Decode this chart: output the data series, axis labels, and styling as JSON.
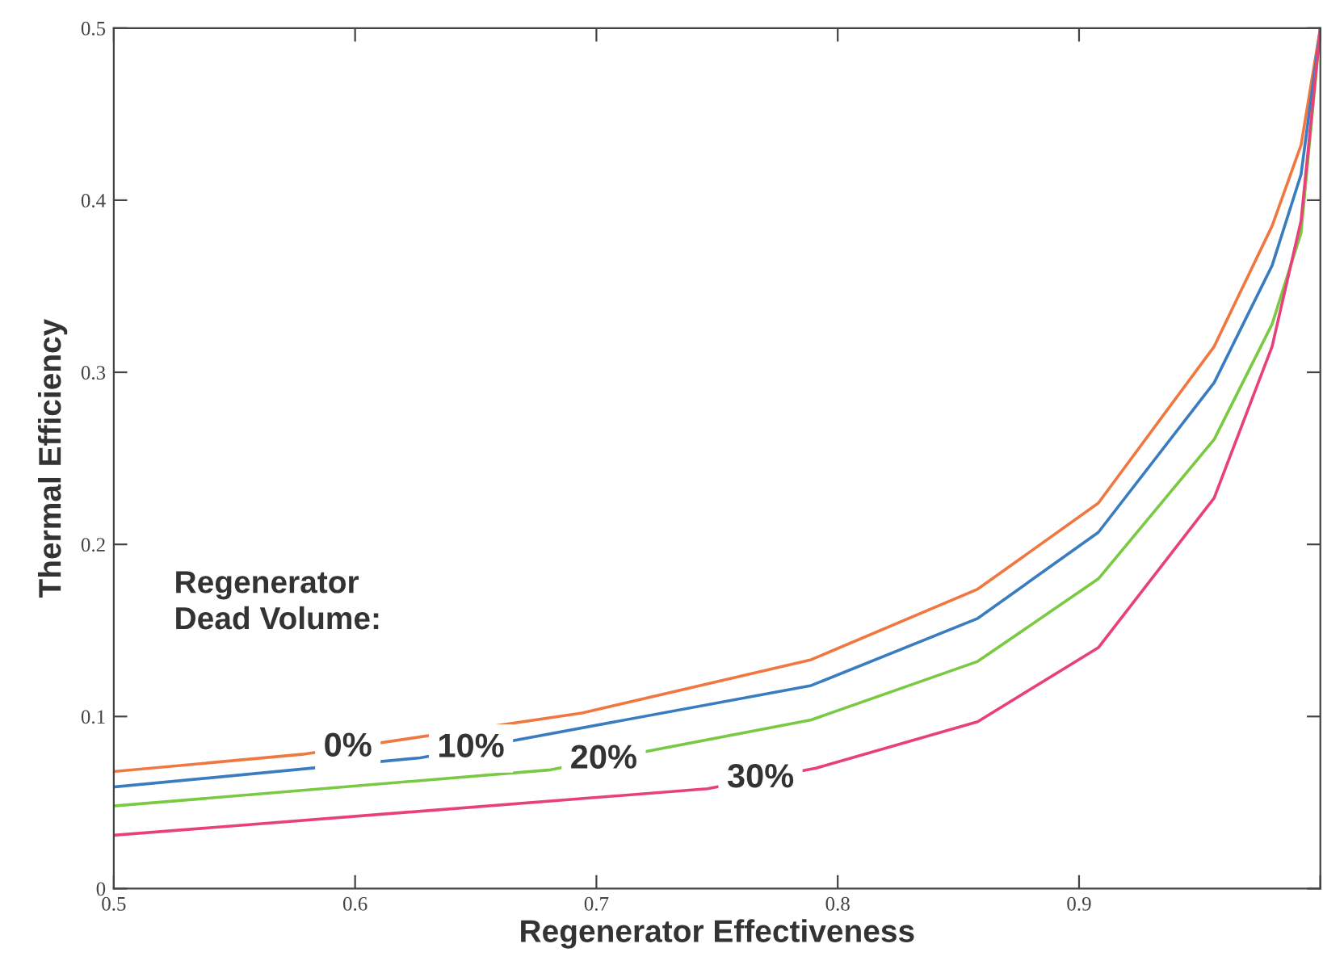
{
  "chart_data": {
    "type": "line",
    "xlabel": "Regenerator Effectiveness",
    "ylabel": "Thermal Efficiency",
    "legend_title": "Regenerator\nDead Volume:",
    "xlim": [
      0.5,
      1.0
    ],
    "ylim": [
      0,
      0.5
    ],
    "xticks": [
      0.5,
      0.6,
      0.7,
      0.8,
      0.9,
      {
        "value": 1.0,
        "label": null
      }
    ],
    "yticks": [
      0,
      0.1,
      0.2,
      0.3,
      0.4,
      0.5
    ],
    "grid": false,
    "legend": false,
    "marker": "none",
    "line_style": "solid",
    "series": [
      {
        "name": "0%",
        "color": "#f07840",
        "x": [
          0.5,
          0.578,
          0.694,
          0.789,
          0.858,
          0.908,
          0.956,
          0.98,
          0.992,
          1.0
        ],
        "values": [
          0.068,
          0.078,
          0.102,
          0.133,
          0.174,
          0.224,
          0.315,
          0.385,
          0.432,
          0.5
        ]
      },
      {
        "name": "10%",
        "color": "#3a7cc0",
        "x": [
          0.5,
          0.627,
          0.789,
          0.858,
          0.908,
          0.956,
          0.98,
          0.992,
          1.0
        ],
        "values": [
          0.059,
          0.076,
          0.118,
          0.157,
          0.207,
          0.294,
          0.362,
          0.415,
          0.5
        ]
      },
      {
        "name": "20%",
        "color": "#7ac943",
        "x": [
          0.5,
          0.681,
          0.789,
          0.858,
          0.908,
          0.956,
          0.98,
          0.992,
          1.0
        ],
        "values": [
          0.048,
          0.069,
          0.098,
          0.132,
          0.18,
          0.261,
          0.328,
          0.381,
          0.5
        ]
      },
      {
        "name": "30%",
        "color": "#e8407a",
        "x": [
          0.5,
          0.746,
          0.791,
          0.858,
          0.908,
          0.956,
          0.98,
          0.992,
          1.0
        ],
        "values": [
          0.031,
          0.058,
          0.07,
          0.097,
          0.14,
          0.227,
          0.315,
          0.388,
          0.5
        ]
      }
    ]
  }
}
